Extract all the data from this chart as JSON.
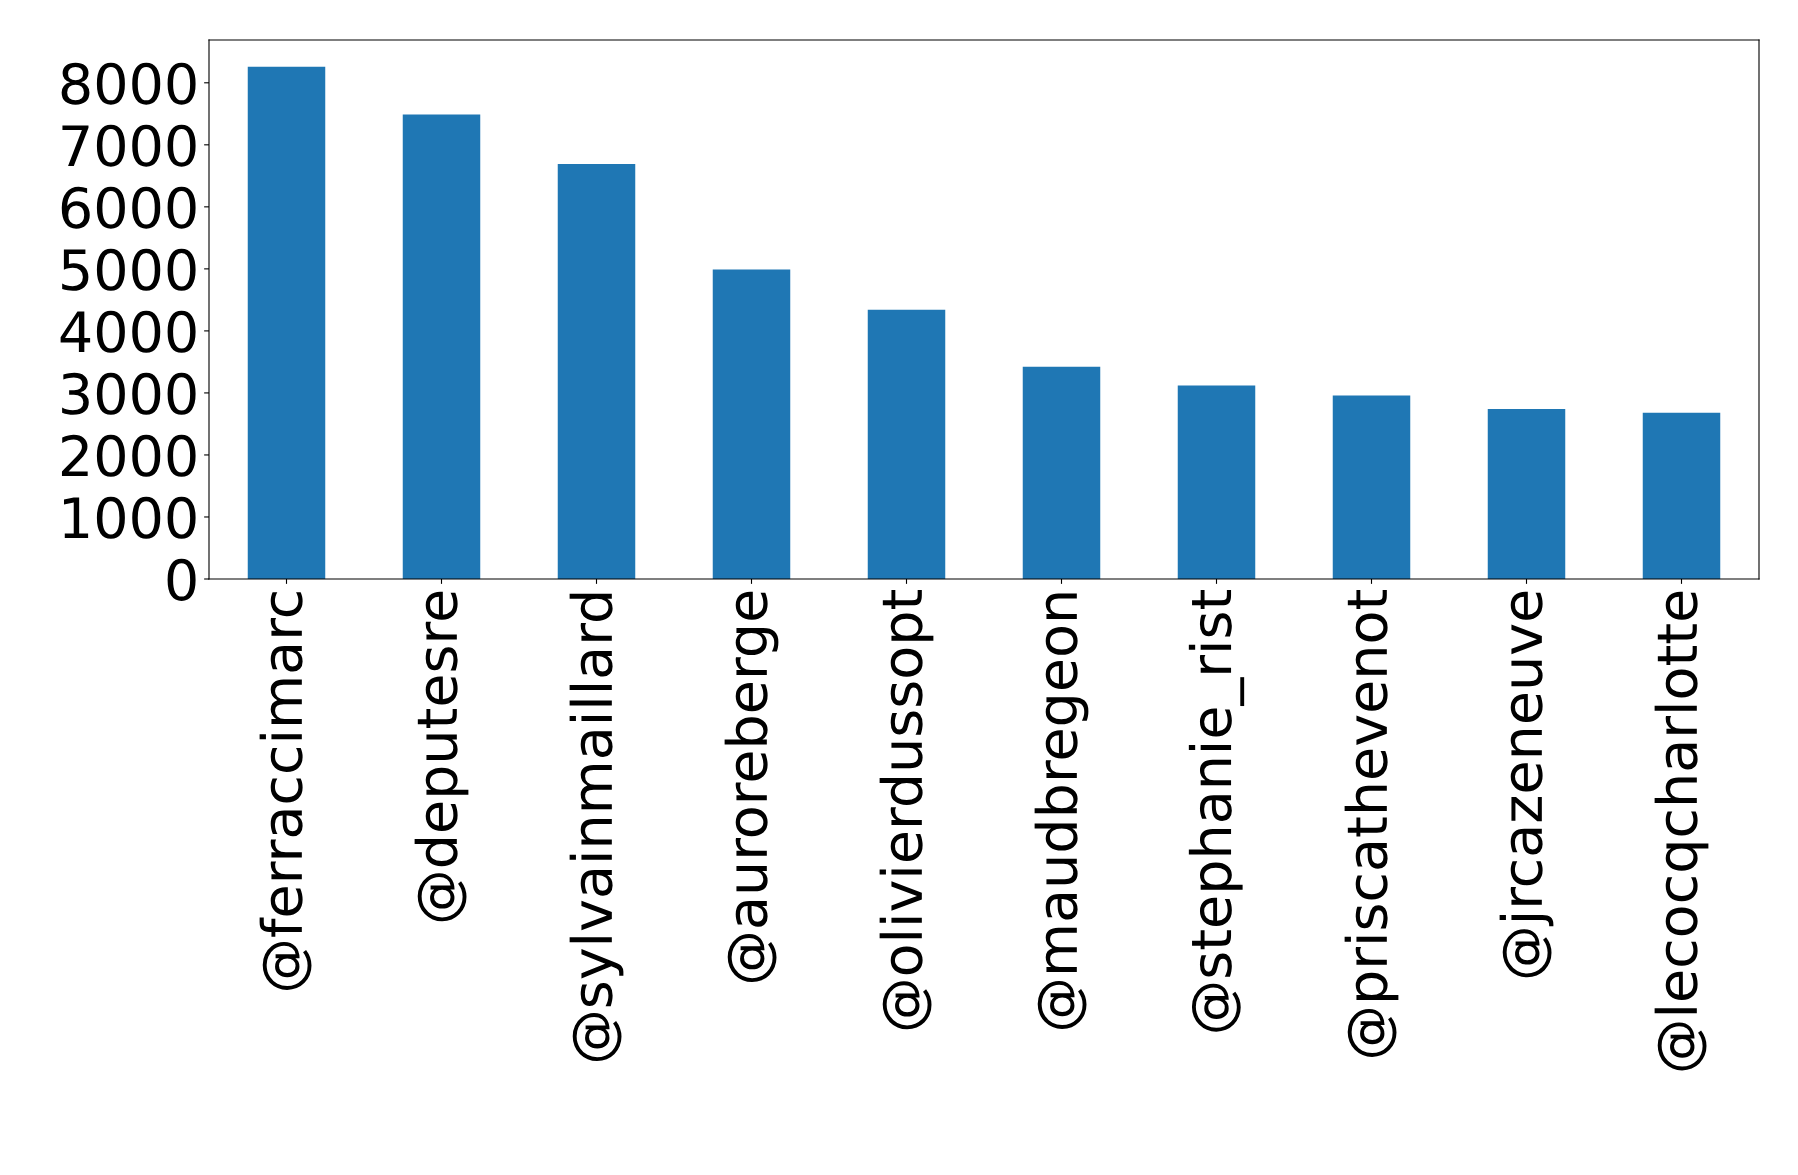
{
  "chart_data": {
    "type": "bar",
    "categories": [
      "@ferraccimarc",
      "@deputesre",
      "@sylvainmaillard",
      "@auroreberge",
      "@olivierdussopt",
      "@maudbregeon",
      "@stephanie_rist",
      "@priscathevenot",
      "@jrcazeneuve",
      "@lecocqcharlotte"
    ],
    "values": [
      8260,
      7490,
      6690,
      4990,
      4340,
      3420,
      3120,
      2960,
      2740,
      2680
    ],
    "color": "#1f77b4",
    "ylim": [
      0,
      8690
    ],
    "yticks": [
      0,
      1000,
      2000,
      3000,
      4000,
      5000,
      6000,
      7000,
      8000
    ],
    "grid": false,
    "legend": false
  }
}
